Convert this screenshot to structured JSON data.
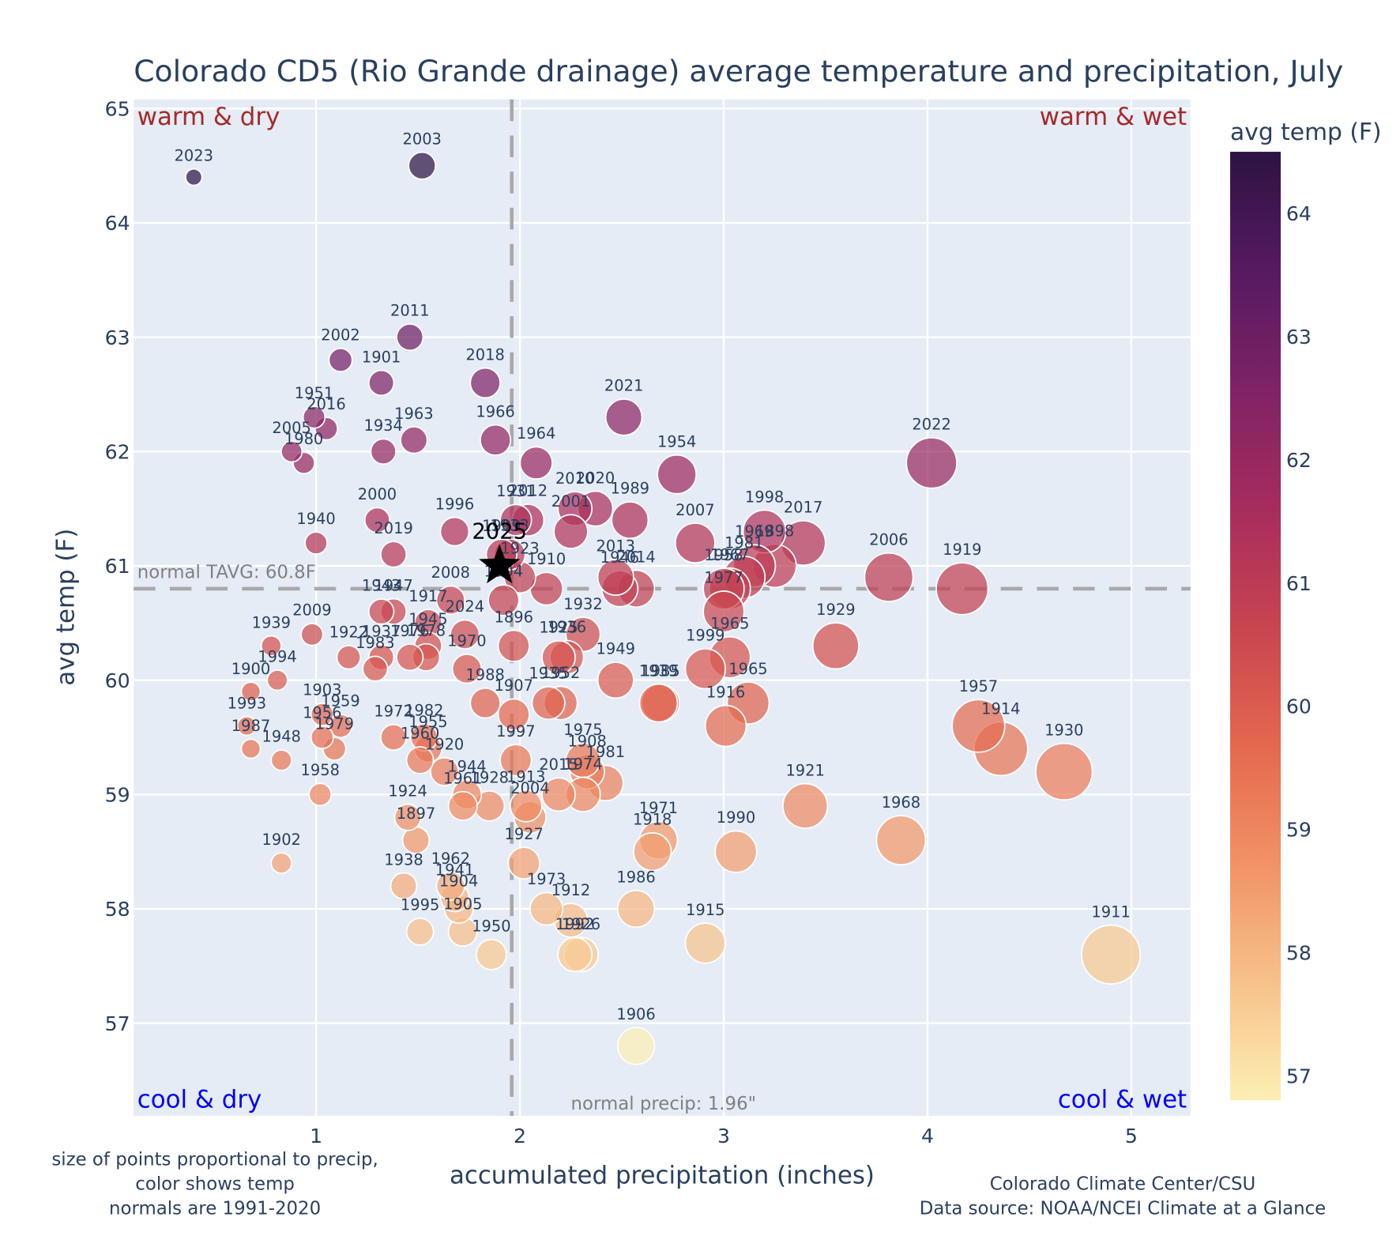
{
  "chart_data": {
    "type": "scatter",
    "title": "Colorado CD5 (Rio Grande drainage) average temperature and precipitation, July",
    "xlabel": "accumulated precipitation (inches)",
    "ylabel": "avg temp (F)",
    "xlim": [
      0.105,
      5.29
    ],
    "ylim": [
      56.19,
      65.08
    ],
    "xticks": [
      1,
      2,
      3,
      4,
      5
    ],
    "yticks": [
      57,
      58,
      59,
      60,
      61,
      62,
      63,
      64,
      65
    ],
    "grid": true,
    "colorbar": {
      "title": "avg temp (F)",
      "range": [
        56.8,
        64.5
      ],
      "ticks": [
        57,
        58,
        59,
        60,
        61,
        62,
        63,
        64
      ],
      "colorscale": [
        "#fcefb4",
        "#f7c18b",
        "#f19266",
        "#e4674e",
        "#c84450",
        "#a62c5d",
        "#7f2266",
        "#561a60",
        "#2d1343"
      ]
    },
    "normals": {
      "precip": 1.96,
      "precip_label": "normal precip: 1.96\"",
      "temp": 60.8,
      "temp_label": "normal TAVG: 60.8F"
    },
    "quadrant_labels": {
      "top_left": "warm & dry",
      "top_right": "warm & wet",
      "bottom_left": "cool & dry",
      "bottom_right": "cool & wet"
    },
    "highlight": {
      "label": "2025",
      "x": 1.9,
      "y": 61.0,
      "marker": "star"
    },
    "points": [
      {
        "year": "2023",
        "x": 0.4,
        "y": 64.4
      },
      {
        "year": "2003",
        "x": 1.52,
        "y": 64.5
      },
      {
        "year": "2011",
        "x": 1.46,
        "y": 63.0
      },
      {
        "year": "2002",
        "x": 1.12,
        "y": 62.8
      },
      {
        "year": "1901",
        "x": 1.32,
        "y": 62.6
      },
      {
        "year": "2018",
        "x": 1.83,
        "y": 62.6
      },
      {
        "year": "1951",
        "x": 0.99,
        "y": 62.3
      },
      {
        "year": "2016",
        "x": 1.05,
        "y": 62.2
      },
      {
        "year": "2021",
        "x": 2.51,
        "y": 62.3
      },
      {
        "year": "1963",
        "x": 1.48,
        "y": 62.1
      },
      {
        "year": "1966",
        "x": 1.88,
        "y": 62.1
      },
      {
        "year": "2005",
        "x": 0.88,
        "y": 62.0
      },
      {
        "year": "1934",
        "x": 1.33,
        "y": 62.0
      },
      {
        "year": "1980",
        "x": 0.94,
        "y": 61.9
      },
      {
        "year": "1964",
        "x": 2.08,
        "y": 61.9
      },
      {
        "year": "1954",
        "x": 2.77,
        "y": 61.8
      },
      {
        "year": "2022",
        "x": 4.02,
        "y": 61.9
      },
      {
        "year": "2000",
        "x": 1.3,
        "y": 61.4
      },
      {
        "year": "1996",
        "x": 1.68,
        "y": 61.3
      },
      {
        "year": "1931",
        "x": 1.98,
        "y": 61.4
      },
      {
        "year": "2012",
        "x": 2.04,
        "y": 61.4
      },
      {
        "year": "2010",
        "x": 2.27,
        "y": 61.5
      },
      {
        "year": "2020",
        "x": 2.37,
        "y": 61.5
      },
      {
        "year": "2001",
        "x": 2.25,
        "y": 61.3
      },
      {
        "year": "1989",
        "x": 2.54,
        "y": 61.4
      },
      {
        "year": "2007",
        "x": 2.86,
        "y": 61.2
      },
      {
        "year": "1998",
        "x": 3.2,
        "y": 61.3
      },
      {
        "year": "2017",
        "x": 3.39,
        "y": 61.2
      },
      {
        "year": "1898",
        "x": 3.25,
        "y": 61.0
      },
      {
        "year": "1940",
        "x": 1.0,
        "y": 61.2
      },
      {
        "year": "2019",
        "x": 1.38,
        "y": 61.1
      },
      {
        "year": "1909",
        "x": 1.91,
        "y": 61.1
      },
      {
        "year": "1923",
        "x": 2.0,
        "y": 60.9
      },
      {
        "year": "1933",
        "x": 1.95,
        "y": 61.1
      },
      {
        "year": "1910",
        "x": 2.13,
        "y": 60.8
      },
      {
        "year": "1904b",
        "x": 1.92,
        "y": 60.7
      },
      {
        "year": "2013",
        "x": 2.47,
        "y": 60.9
      },
      {
        "year": "1946",
        "x": 2.49,
        "y": 60.8
      },
      {
        "year": "2014",
        "x": 2.57,
        "y": 60.8
      },
      {
        "year": "1958b",
        "x": 3.0,
        "y": 60.8
      },
      {
        "year": "1981",
        "x": 3.1,
        "y": 60.9
      },
      {
        "year": "1969",
        "x": 3.15,
        "y": 61.0
      },
      {
        "year": "1967",
        "x": 3.03,
        "y": 60.8
      },
      {
        "year": "2006",
        "x": 3.81,
        "y": 60.9
      },
      {
        "year": "1919",
        "x": 4.17,
        "y": 60.8
      },
      {
        "year": "1943",
        "x": 1.32,
        "y": 60.6
      },
      {
        "year": "1947",
        "x": 1.38,
        "y": 60.6
      },
      {
        "year": "2008",
        "x": 1.66,
        "y": 60.7
      },
      {
        "year": "1917",
        "x": 1.55,
        "y": 60.5
      },
      {
        "year": "2024",
        "x": 1.73,
        "y": 60.4
      },
      {
        "year": "1896",
        "x": 1.97,
        "y": 60.3
      },
      {
        "year": "1932",
        "x": 2.31,
        "y": 60.4
      },
      {
        "year": "1977",
        "x": 3.0,
        "y": 60.6
      },
      {
        "year": "1929",
        "x": 3.55,
        "y": 60.3
      },
      {
        "year": "2009",
        "x": 0.98,
        "y": 60.4
      },
      {
        "year": "1939",
        "x": 0.78,
        "y": 60.3
      },
      {
        "year": "1922",
        "x": 1.16,
        "y": 60.2
      },
      {
        "year": "1937",
        "x": 1.32,
        "y": 60.2
      },
      {
        "year": "1983",
        "x": 1.29,
        "y": 60.1
      },
      {
        "year": "1945",
        "x": 1.55,
        "y": 60.3
      },
      {
        "year": "1976",
        "x": 1.46,
        "y": 60.2
      },
      {
        "year": "1978",
        "x": 1.54,
        "y": 60.2
      },
      {
        "year": "1970",
        "x": 1.74,
        "y": 60.1
      },
      {
        "year": "1925",
        "x": 2.19,
        "y": 60.2
      },
      {
        "year": "1936",
        "x": 2.23,
        "y": 60.2
      },
      {
        "year": "1949",
        "x": 2.47,
        "y": 60.0
      },
      {
        "year": "1999",
        "x": 2.91,
        "y": 60.1
      },
      {
        "year": "1965",
        "x": 3.03,
        "y": 60.2
      },
      {
        "year": "1994",
        "x": 0.81,
        "y": 60.0
      },
      {
        "year": "1900",
        "x": 0.68,
        "y": 59.9
      },
      {
        "year": "1988",
        "x": 1.83,
        "y": 59.8
      },
      {
        "year": "1907",
        "x": 1.97,
        "y": 59.7
      },
      {
        "year": "1935",
        "x": 2.14,
        "y": 59.8
      },
      {
        "year": "1952",
        "x": 2.2,
        "y": 59.8
      },
      {
        "year": "1939b",
        "x": 2.68,
        "y": 59.8
      },
      {
        "year": "1985",
        "x": 2.69,
        "y": 59.8
      },
      {
        "year": "1916",
        "x": 3.01,
        "y": 59.6
      },
      {
        "year": "1965b",
        "x": 3.12,
        "y": 59.8
      },
      {
        "year": "1957",
        "x": 4.25,
        "y": 59.6
      },
      {
        "year": "1914",
        "x": 4.36,
        "y": 59.4
      },
      {
        "year": "1930",
        "x": 4.67,
        "y": 59.2
      },
      {
        "year": "1903",
        "x": 1.03,
        "y": 59.7
      },
      {
        "year": "1959",
        "x": 1.12,
        "y": 59.6
      },
      {
        "year": "1993",
        "x": 0.66,
        "y": 59.6
      },
      {
        "year": "1987",
        "x": 0.68,
        "y": 59.4
      },
      {
        "year": "1956",
        "x": 1.03,
        "y": 59.5
      },
      {
        "year": "1979",
        "x": 1.09,
        "y": 59.4
      },
      {
        "year": "1948",
        "x": 0.83,
        "y": 59.3
      },
      {
        "year": "1972",
        "x": 1.38,
        "y": 59.5
      },
      {
        "year": "1982",
        "x": 1.53,
        "y": 59.5
      },
      {
        "year": "1955",
        "x": 1.55,
        "y": 59.4
      },
      {
        "year": "1960",
        "x": 1.51,
        "y": 59.3
      },
      {
        "year": "1920",
        "x": 1.63,
        "y": 59.2
      },
      {
        "year": "1997",
        "x": 1.98,
        "y": 59.3
      },
      {
        "year": "1975",
        "x": 2.31,
        "y": 59.3
      },
      {
        "year": "1908",
        "x": 2.33,
        "y": 59.2
      },
      {
        "year": "1981b",
        "x": 2.42,
        "y": 59.1
      },
      {
        "year": "2015",
        "x": 2.19,
        "y": 59.0
      },
      {
        "year": "1974",
        "x": 2.31,
        "y": 59.0
      },
      {
        "year": "1944",
        "x": 1.74,
        "y": 59.0
      },
      {
        "year": "1961",
        "x": 1.72,
        "y": 58.9
      },
      {
        "year": "1928",
        "x": 1.85,
        "y": 58.9
      },
      {
        "year": "1913",
        "x": 2.03,
        "y": 58.9
      },
      {
        "year": "2004",
        "x": 2.05,
        "y": 58.8
      },
      {
        "year": "1958",
        "x": 1.02,
        "y": 59.0
      },
      {
        "year": "1924",
        "x": 1.45,
        "y": 58.8
      },
      {
        "year": "1897",
        "x": 1.49,
        "y": 58.6
      },
      {
        "year": "1921",
        "x": 3.4,
        "y": 58.9
      },
      {
        "year": "1971",
        "x": 2.68,
        "y": 58.6
      },
      {
        "year": "1918",
        "x": 2.65,
        "y": 58.5
      },
      {
        "year": "1990",
        "x": 3.06,
        "y": 58.5
      },
      {
        "year": "1968",
        "x": 3.87,
        "y": 58.6
      },
      {
        "year": "1927",
        "x": 2.02,
        "y": 58.4
      },
      {
        "year": "1902",
        "x": 0.83,
        "y": 58.4
      },
      {
        "year": "1938",
        "x": 1.43,
        "y": 58.2
      },
      {
        "year": "1962",
        "x": 1.66,
        "y": 58.2
      },
      {
        "year": "1941",
        "x": 1.68,
        "y": 58.1
      },
      {
        "year": "1904",
        "x": 1.7,
        "y": 58.0
      },
      {
        "year": "1973",
        "x": 2.13,
        "y": 58.0
      },
      {
        "year": "1986",
        "x": 2.57,
        "y": 58.0
      },
      {
        "year": "1912",
        "x": 2.25,
        "y": 57.9
      },
      {
        "year": "1905",
        "x": 1.72,
        "y": 57.8
      },
      {
        "year": "1995",
        "x": 1.51,
        "y": 57.8
      },
      {
        "year": "1915",
        "x": 2.91,
        "y": 57.7
      },
      {
        "year": "1950",
        "x": 1.86,
        "y": 57.6
      },
      {
        "year": "1992",
        "x": 2.27,
        "y": 57.6
      },
      {
        "year": "1926",
        "x": 2.3,
        "y": 57.6
      },
      {
        "year": "1911",
        "x": 4.9,
        "y": 57.6
      },
      {
        "year": "1906",
        "x": 2.57,
        "y": 56.8
      }
    ]
  },
  "notes": {
    "left_line1": "size of points proportional to precip,",
    "left_line2": "color shows temp",
    "left_line3": "normals are 1991-2020",
    "right_line1": "Colorado Climate Center/CSU",
    "right_line2": "Data source: NOAA/NCEI Climate at a Glance"
  }
}
